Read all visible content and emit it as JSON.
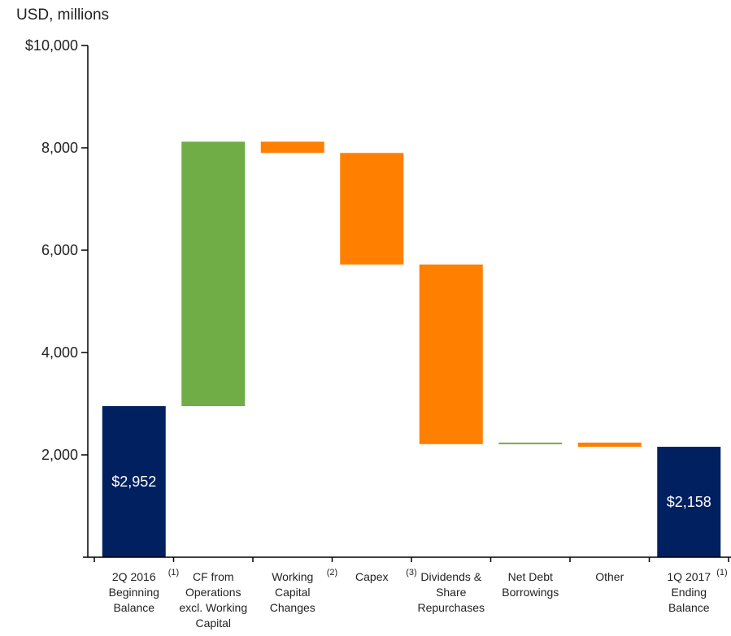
{
  "chart_data": {
    "type": "bar",
    "subtype": "waterfall",
    "unit_label": "USD, millions",
    "ylim": [
      0,
      10000
    ],
    "y_ticks": [
      {
        "value": 2000,
        "label": "2,000"
      },
      {
        "value": 4000,
        "label": "4,000"
      },
      {
        "value": 6000,
        "label": "6,000"
      },
      {
        "value": 8000,
        "label": "8,000"
      },
      {
        "value": 10000,
        "label": "$10,000"
      }
    ],
    "categories": [
      {
        "lines": [
          "2Q 2016",
          "Beginning",
          "Balance"
        ],
        "footnote": "(1)"
      },
      {
        "lines": [
          "CF from",
          "Operations",
          "excl. Working",
          "Capital"
        ],
        "footnote": ""
      },
      {
        "lines": [
          "Working",
          "Capital",
          "Changes"
        ],
        "footnote": "(2)"
      },
      {
        "lines": [
          "Capex"
        ],
        "footnote": "(3)"
      },
      {
        "lines": [
          "Dividends &",
          "Share",
          "Repurchases"
        ],
        "footnote": ""
      },
      {
        "lines": [
          "Net Debt",
          "Borrowings"
        ],
        "footnote": ""
      },
      {
        "lines": [
          "Other"
        ],
        "footnote": ""
      },
      {
        "lines": [
          "1Q 2017",
          "Ending",
          "Balance"
        ],
        "footnote": "(1)"
      }
    ],
    "bars": [
      {
        "kind": "total",
        "start": 0,
        "end": 2952,
        "label": "$2,952"
      },
      {
        "kind": "increase",
        "start": 2952,
        "end": 8120,
        "label": ""
      },
      {
        "kind": "decrease",
        "start": 8120,
        "end": 7900,
        "label": ""
      },
      {
        "kind": "decrease",
        "start": 7900,
        "end": 5720,
        "label": ""
      },
      {
        "kind": "decrease",
        "start": 5720,
        "end": 2210,
        "label": ""
      },
      {
        "kind": "increase",
        "start": 2210,
        "end": 2240,
        "label": ""
      },
      {
        "kind": "decrease",
        "start": 2240,
        "end": 2158,
        "label": ""
      },
      {
        "kind": "total",
        "start": 0,
        "end": 2158,
        "label": "$2,158"
      }
    ],
    "colors": {
      "total": "#002060",
      "increase": "#70AD47",
      "decrease": "#FF7F00",
      "axis": "#000000"
    },
    "grid": false,
    "legend": "none"
  }
}
